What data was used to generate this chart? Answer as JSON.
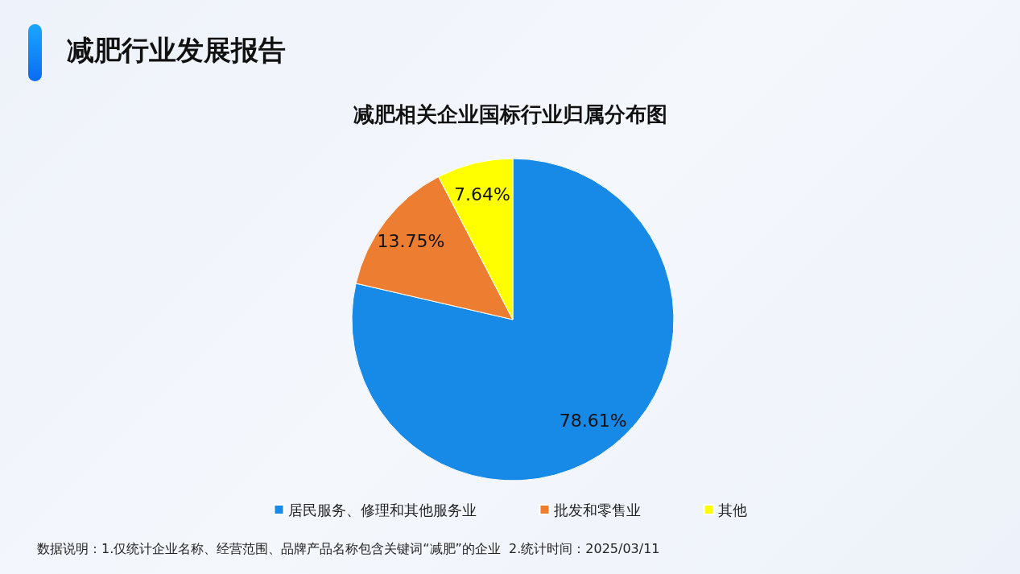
{
  "chart_data": {
    "type": "pie",
    "title": "减肥行业发展报告",
    "subtitle": "减肥相关企业国标行业归属分布图",
    "categories": [
      "居民服务、修理和其他服务业",
      "批发和零售业",
      "其他"
    ],
    "values": [
      78.61,
      13.75,
      7.64
    ],
    "colors": [
      "#1789e6",
      "#ed7d31",
      "#ffff00"
    ],
    "value_labels": [
      "78.61%",
      "13.75%",
      "7.64%"
    ],
    "legend": "bottom",
    "annotations": [
      "数据说明：1.仅统计企业名称、经营范围、品牌产品名称包含关键词“减肥”的企业  2.统计时间：2025/03/11"
    ]
  }
}
